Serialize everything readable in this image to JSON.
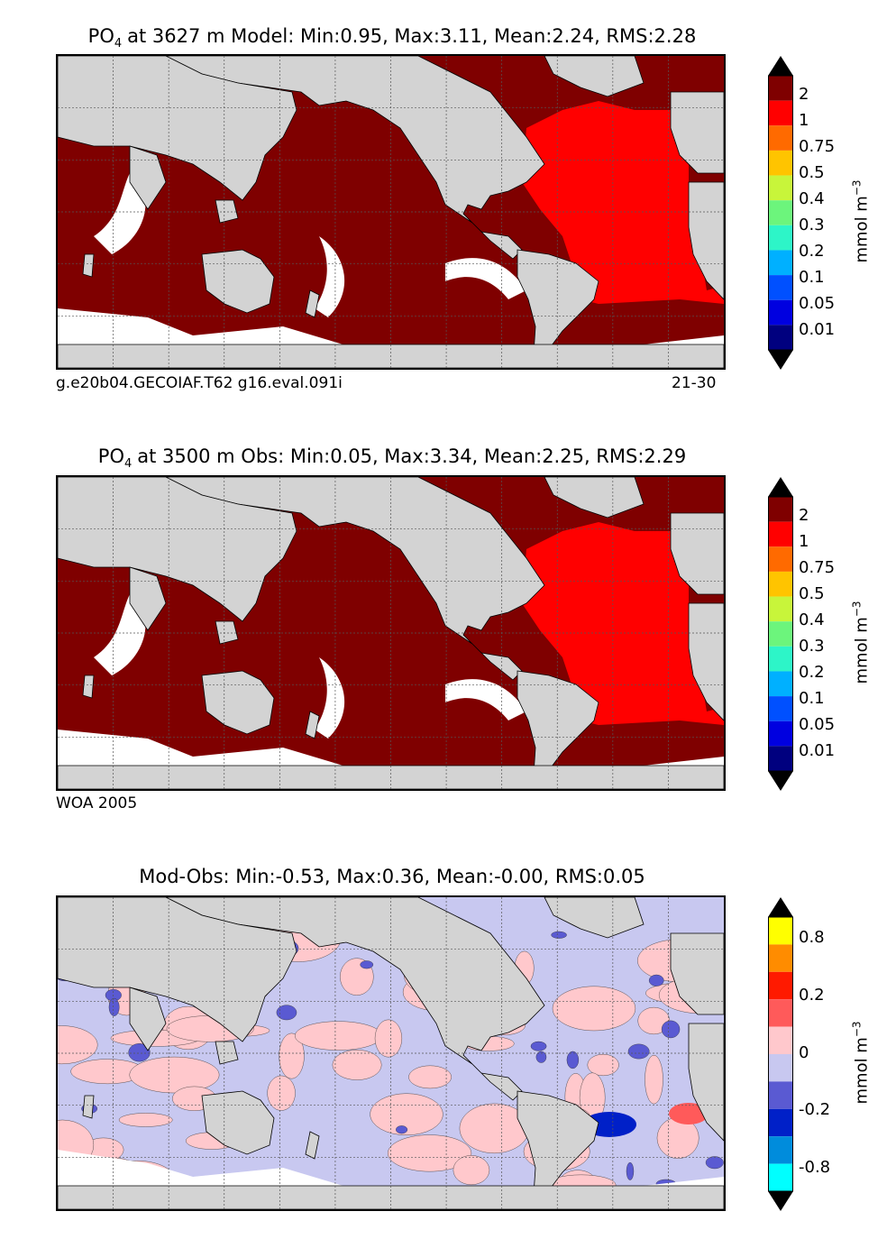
{
  "panels": [
    {
      "title_main": "PO",
      "title_sub": "4",
      "title_rest": "at 3627 m Model: Min:0.95, Max:3.11, Mean:2.24, RMS:2.28",
      "caption_left": "g.e20b04.GECOIAF.T62 g16.eval.091i",
      "caption_right": "21-30",
      "field_level": "high"
    },
    {
      "title_main": "PO",
      "title_sub": "4",
      "title_rest": "at 3500 m Obs: Min:0.05, Max:3.34, Mean:2.25, RMS:2.29",
      "caption_left": "WOA 2005",
      "caption_right": "",
      "field_level": "high"
    },
    {
      "title_main": "",
      "title_sub": "",
      "title_rest": "Mod-Obs: Min:-0.53, Max:0.36, Mean:-0.00, RMS:0.05",
      "caption_left": "",
      "caption_right": "",
      "field_level": "difference"
    }
  ],
  "colorbar_main": {
    "unit": "mmol m",
    "unit_exp": "−3",
    "ticks": [
      "2",
      "1",
      "0.75",
      "0.5",
      "0.4",
      "0.3",
      "0.2",
      "0.1",
      "0.05",
      "0.01"
    ],
    "colors": [
      "#7f0000",
      "#ff0000",
      "#ff6a00",
      "#ffc400",
      "#c8f53a",
      "#6cf57c",
      "#2df5c8",
      "#00b0ff",
      "#0050ff",
      "#0000e0",
      "#00007f"
    ],
    "extend": "both"
  },
  "colorbar_diff": {
    "unit": "mmol m",
    "unit_exp": "−3",
    "ticks": [
      "0.8",
      "0.2",
      "0",
      "-0.2",
      "-0.8"
    ],
    "colors": [
      "#ffff00",
      "#ff8c00",
      "#ff1a00",
      "#ff5a5a",
      "#ffc8cc",
      "#c8c8f0",
      "#5a5ad2",
      "#0020c8",
      "#008cdc",
      "#00ffff"
    ],
    "extend": "both"
  },
  "chart_data": [
    {
      "type": "heatmap",
      "title": "PO4 at 3627 m Model: Min:0.95, Max:3.11, Mean:2.24, RMS:2.28",
      "variable": "PO4",
      "depth_m": 3627,
      "source": "Model",
      "stats": {
        "min": 0.95,
        "max": 3.11,
        "mean": 2.24,
        "rms": 2.28
      },
      "colorbar_ticks": [
        2,
        1,
        0.75,
        0.5,
        0.4,
        0.3,
        0.2,
        0.1,
        0.05,
        0.01
      ],
      "unit": "mmol m-3",
      "regions": {
        "Pacific": ">2",
        "Indian": ">2",
        "Southern": ">2",
        "Atlantic": "1-2"
      },
      "grid": true
    },
    {
      "type": "heatmap",
      "title": "PO4 at 3500 m Obs: Min:0.05, Max:3.34, Mean:2.25, RMS:2.29",
      "variable": "PO4",
      "depth_m": 3500,
      "source": "Obs",
      "stats": {
        "min": 0.05,
        "max": 3.34,
        "mean": 2.25,
        "rms": 2.29
      },
      "colorbar_ticks": [
        2,
        1,
        0.75,
        0.5,
        0.4,
        0.3,
        0.2,
        0.1,
        0.05,
        0.01
      ],
      "unit": "mmol m-3",
      "regions": {
        "Pacific": ">2",
        "Indian": ">2",
        "Southern": ">2",
        "Atlantic": "1-2"
      },
      "grid": true
    },
    {
      "type": "heatmap",
      "title": "Mod-Obs: Min:-0.53, Max:0.36, Mean:-0.00, RMS:0.05",
      "stats": {
        "min": -0.53,
        "max": 0.36,
        "mean": -0.0,
        "rms": 0.05
      },
      "colorbar_ticks": [
        0.8,
        0.2,
        0,
        -0.2,
        -0.8
      ],
      "unit": "mmol m-3",
      "grid": true
    }
  ]
}
